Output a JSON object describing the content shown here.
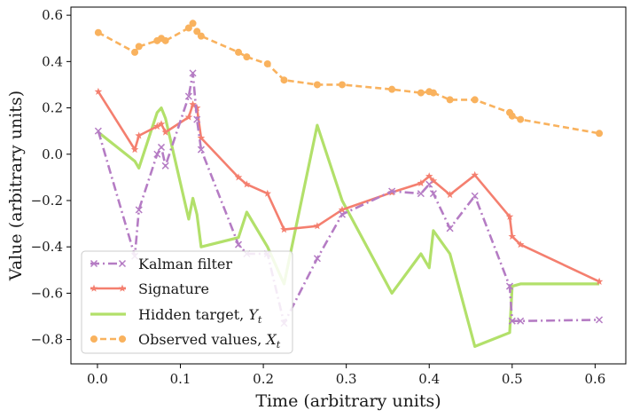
{
  "chart_data": {
    "type": "line",
    "title": "",
    "xlabel": "Time (arbitrary units)",
    "ylabel": "Value (arbitrary units)",
    "xlim": [
      -0.032,
      0.637
    ],
    "ylim": [
      -0.905,
      0.635
    ],
    "xticks": [
      0.0,
      0.1,
      0.2,
      0.3,
      0.4,
      0.5,
      0.6
    ],
    "xtick_labels": [
      "0.0",
      "0.1",
      "0.2",
      "0.3",
      "0.4",
      "0.5",
      "0.6"
    ],
    "yticks": [
      -0.8,
      -0.6,
      -0.4,
      -0.2,
      0.0,
      0.2,
      0.4,
      0.6
    ],
    "ytick_labels": [
      "−0.8",
      "−0.6",
      "−0.4",
      "−0.2",
      "0.0",
      "0.2",
      "0.4",
      "0.6"
    ],
    "legend_position": "lower-left",
    "series": [
      {
        "name": "Kalman filter",
        "legend_label": "Kalman filter",
        "color": "#b57cc4",
        "linestyle": "dashdot",
        "marker": "x",
        "x": [
          0.001,
          0.045,
          0.05,
          0.072,
          0.077,
          0.082,
          0.11,
          0.115,
          0.12,
          0.125,
          0.17,
          0.18,
          0.205,
          0.225,
          0.265,
          0.295,
          0.355,
          0.39,
          0.4,
          0.405,
          0.425,
          0.455,
          0.497,
          0.5,
          0.51,
          0.605
        ],
        "y": [
          0.1,
          -0.44,
          -0.24,
          0.0,
          0.03,
          -0.05,
          0.25,
          0.35,
          0.15,
          0.02,
          -0.39,
          -0.43,
          -0.43,
          -0.73,
          -0.45,
          -0.26,
          -0.16,
          -0.17,
          -0.13,
          -0.17,
          -0.32,
          -0.18,
          -0.57,
          -0.72,
          -0.72,
          -0.715
        ]
      },
      {
        "name": "Signature",
        "legend_label": "Signature",
        "color": "#f47f6f",
        "linestyle": "solid",
        "marker": "*",
        "x": [
          0.001,
          0.045,
          0.05,
          0.072,
          0.077,
          0.082,
          0.11,
          0.115,
          0.12,
          0.125,
          0.17,
          0.18,
          0.205,
          0.225,
          0.265,
          0.295,
          0.355,
          0.39,
          0.4,
          0.405,
          0.425,
          0.455,
          0.497,
          0.5,
          0.51,
          0.605
        ],
        "y": [
          0.27,
          0.02,
          0.08,
          0.12,
          0.13,
          0.095,
          0.16,
          0.215,
          0.2,
          0.07,
          -0.1,
          -0.13,
          -0.17,
          -0.325,
          -0.31,
          -0.24,
          -0.165,
          -0.125,
          -0.095,
          -0.115,
          -0.175,
          -0.09,
          -0.27,
          -0.355,
          -0.39,
          -0.55
        ]
      },
      {
        "name": "Hidden target, Y_t",
        "legend_label": "Hidden target, ",
        "legend_math_base": "Y",
        "legend_math_sub": "t",
        "color": "#b2e06a",
        "linestyle": "solid",
        "marker": "none",
        "x": [
          0.001,
          0.045,
          0.05,
          0.072,
          0.077,
          0.082,
          0.11,
          0.115,
          0.12,
          0.125,
          0.17,
          0.18,
          0.205,
          0.225,
          0.265,
          0.295,
          0.355,
          0.39,
          0.4,
          0.405,
          0.425,
          0.455,
          0.497,
          0.5,
          0.51,
          0.605
        ],
        "y": [
          0.095,
          -0.03,
          -0.06,
          0.18,
          0.2,
          0.155,
          -0.28,
          -0.19,
          -0.26,
          -0.4,
          -0.36,
          -0.25,
          -0.4,
          -0.56,
          0.125,
          -0.2,
          -0.6,
          -0.43,
          -0.49,
          -0.33,
          -0.43,
          -0.83,
          -0.77,
          -0.57,
          -0.56,
          -0.56
        ]
      },
      {
        "name": "Observed values, X_t",
        "legend_label": "Observed values, ",
        "legend_math_base": "X",
        "legend_math_sub": "t",
        "color": "#f9b25e",
        "linestyle": "dashed",
        "marker": "o",
        "x": [
          0.001,
          0.045,
          0.05,
          0.072,
          0.077,
          0.082,
          0.11,
          0.115,
          0.12,
          0.125,
          0.17,
          0.18,
          0.205,
          0.225,
          0.265,
          0.295,
          0.355,
          0.39,
          0.4,
          0.405,
          0.425,
          0.455,
          0.497,
          0.5,
          0.51,
          0.605
        ],
        "y": [
          0.525,
          0.44,
          0.465,
          0.49,
          0.5,
          0.49,
          0.545,
          0.565,
          0.53,
          0.51,
          0.44,
          0.42,
          0.39,
          0.32,
          0.3,
          0.3,
          0.28,
          0.265,
          0.27,
          0.265,
          0.235,
          0.235,
          0.18,
          0.165,
          0.15,
          0.09
        ]
      }
    ]
  }
}
